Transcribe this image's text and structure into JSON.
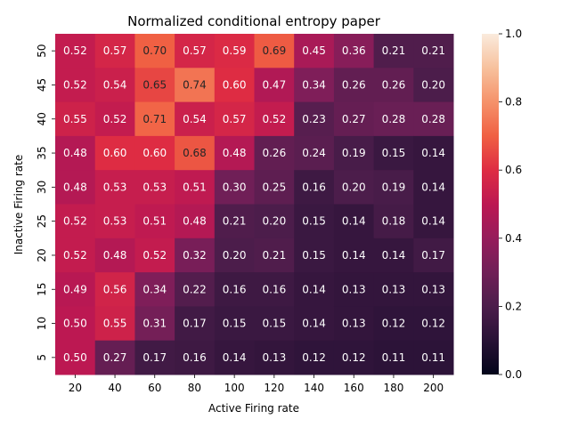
{
  "chart_data": {
    "type": "heatmap",
    "title": "Normalized conditional entropy paper",
    "xlabel": "Active Firing rate",
    "ylabel": "Inactive Firing rate",
    "x_categories": [
      "20",
      "40",
      "60",
      "80",
      "100",
      "120",
      "140",
      "160",
      "180",
      "200"
    ],
    "y_categories": [
      "50",
      "45",
      "40",
      "35",
      "30",
      "25",
      "20",
      "15",
      "10",
      "5"
    ],
    "values": [
      [
        0.52,
        0.57,
        0.7,
        0.57,
        0.59,
        0.69,
        0.45,
        0.36,
        0.21,
        0.21
      ],
      [
        0.52,
        0.54,
        0.65,
        0.74,
        0.6,
        0.47,
        0.34,
        0.26,
        0.26,
        0.2
      ],
      [
        0.55,
        0.52,
        0.71,
        0.54,
        0.57,
        0.52,
        0.23,
        0.27,
        0.28,
        0.28
      ],
      [
        0.48,
        0.6,
        0.6,
        0.68,
        0.48,
        0.26,
        0.24,
        0.19,
        0.15,
        0.14
      ],
      [
        0.48,
        0.53,
        0.53,
        0.51,
        0.3,
        0.25,
        0.16,
        0.2,
        0.19,
        0.14
      ],
      [
        0.52,
        0.53,
        0.51,
        0.48,
        0.21,
        0.2,
        0.15,
        0.14,
        0.18,
        0.14
      ],
      [
        0.52,
        0.48,
        0.52,
        0.32,
        0.2,
        0.21,
        0.15,
        0.14,
        0.14,
        0.17
      ],
      [
        0.49,
        0.56,
        0.34,
        0.22,
        0.16,
        0.16,
        0.14,
        0.13,
        0.13,
        0.13
      ],
      [
        0.5,
        0.55,
        0.31,
        0.17,
        0.15,
        0.15,
        0.14,
        0.13,
        0.12,
        0.12
      ],
      [
        0.5,
        0.27,
        0.17,
        0.16,
        0.14,
        0.13,
        0.12,
        0.12,
        0.11,
        0.11
      ]
    ],
    "colorbar": {
      "range": [
        0.0,
        1.0
      ],
      "ticks": [
        "0.0",
        "0.2",
        "0.4",
        "0.6",
        "0.8",
        "1.0"
      ],
      "colormap": "rocket"
    }
  }
}
